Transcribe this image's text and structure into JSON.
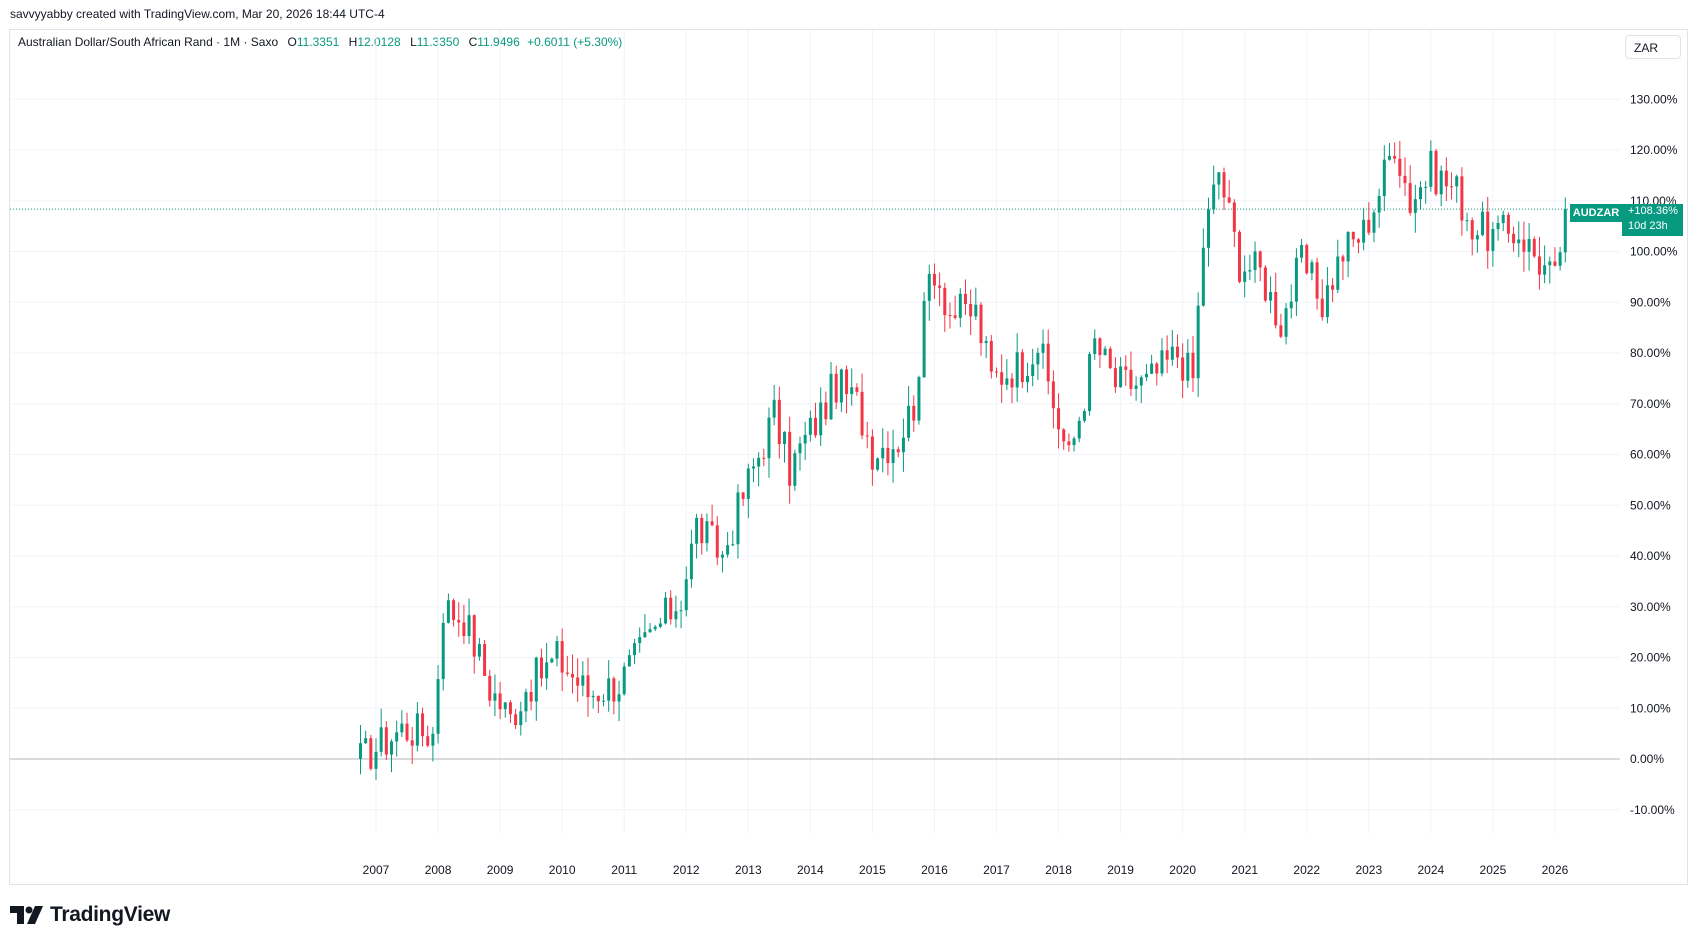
{
  "header": {
    "credit": "savvyyabby created with TradingView.com, Mar 20, 2026 18:44 UTC-4"
  },
  "legend": {
    "title": "Australian Dollar/South African Rand · 1M · Saxo",
    "open_label": "O",
    "open": "11.3351",
    "high_label": "H",
    "high": "12.0128",
    "low_label": "L",
    "low": "11.3350",
    "close_label": "C",
    "close": "11.9496",
    "change": "+0.6011 (+5.30%)"
  },
  "currency_button": "ZAR",
  "last_price": {
    "symbol": "AUDZAR",
    "value": "+108.36%",
    "countdown": "10d 23h"
  },
  "brand": "TradingView",
  "colors": {
    "up": "#089981",
    "down": "#f23645",
    "grid": "#f0f3fa",
    "zero_line": "#b2b5be"
  },
  "chart_data": {
    "type": "candlestick",
    "title": "Australian Dollar/South African Rand",
    "interval": "1M",
    "source": "Saxo",
    "y_unit": "percent change",
    "ylim": [
      -20,
      140
    ],
    "y_ticks": [
      "130.00%",
      "120.00%",
      "110.00%",
      "100.00%",
      "90.00%",
      "80.00%",
      "70.00%",
      "60.00%",
      "50.00%",
      "40.00%",
      "30.00%",
      "20.00%",
      "10.00%",
      "0.00%",
      "-10.00%"
    ],
    "y_tick_values": [
      130,
      120,
      110,
      100,
      90,
      80,
      70,
      60,
      50,
      40,
      30,
      20,
      10,
      0,
      -10
    ],
    "x_ticks": [
      "2007",
      "2008",
      "2009",
      "2010",
      "2011",
      "2012",
      "2013",
      "2014",
      "2015",
      "2016",
      "2017",
      "2018",
      "2019",
      "2020",
      "2021",
      "2022",
      "2023",
      "2024",
      "2025",
      "2026"
    ],
    "x_start": "2006-10",
    "x_end": "2026-03",
    "baseline": 0,
    "last_value": 108.36,
    "anchor_points": [
      {
        "date": "2006-10",
        "value": 0
      },
      {
        "date": "2007-06",
        "value": 6
      },
      {
        "date": "2007-12",
        "value": 5
      },
      {
        "date": "2008-02",
        "value": 30
      },
      {
        "date": "2008-06",
        "value": 28
      },
      {
        "date": "2008-09",
        "value": 20
      },
      {
        "date": "2008-11",
        "value": 14
      },
      {
        "date": "2009-03",
        "value": 8
      },
      {
        "date": "2009-06",
        "value": 14
      },
      {
        "date": "2009-12",
        "value": 20
      },
      {
        "date": "2010-06",
        "value": 13
      },
      {
        "date": "2010-12",
        "value": 15
      },
      {
        "date": "2011-06",
        "value": 24
      },
      {
        "date": "2011-12",
        "value": 32
      },
      {
        "date": "2012-03",
        "value": 46
      },
      {
        "date": "2012-08",
        "value": 40
      },
      {
        "date": "2012-12",
        "value": 52
      },
      {
        "date": "2013-03",
        "value": 60
      },
      {
        "date": "2013-06",
        "value": 68
      },
      {
        "date": "2013-09",
        "value": 57
      },
      {
        "date": "2013-12",
        "value": 63
      },
      {
        "date": "2014-03",
        "value": 68
      },
      {
        "date": "2014-06",
        "value": 74
      },
      {
        "date": "2014-10",
        "value": 70
      },
      {
        "date": "2015-01",
        "value": 61
      },
      {
        "date": "2015-06",
        "value": 63
      },
      {
        "date": "2015-09",
        "value": 70
      },
      {
        "date": "2015-12",
        "value": 95
      },
      {
        "date": "2016-01",
        "value": 97
      },
      {
        "date": "2016-04",
        "value": 88
      },
      {
        "date": "2016-09",
        "value": 88
      },
      {
        "date": "2016-12",
        "value": 75
      },
      {
        "date": "2017-06",
        "value": 78
      },
      {
        "date": "2017-09",
        "value": 82
      },
      {
        "date": "2017-12",
        "value": 70
      },
      {
        "date": "2018-03",
        "value": 59
      },
      {
        "date": "2018-06",
        "value": 72
      },
      {
        "date": "2018-08",
        "value": 82
      },
      {
        "date": "2018-12",
        "value": 74
      },
      {
        "date": "2019-06",
        "value": 74
      },
      {
        "date": "2019-12",
        "value": 80
      },
      {
        "date": "2020-03",
        "value": 75
      },
      {
        "date": "2020-05",
        "value": 102
      },
      {
        "date": "2020-08",
        "value": 116
      },
      {
        "date": "2020-12",
        "value": 98
      },
      {
        "date": "2021-04",
        "value": 96
      },
      {
        "date": "2021-08",
        "value": 86
      },
      {
        "date": "2021-12",
        "value": 98
      },
      {
        "date": "2022-04",
        "value": 90
      },
      {
        "date": "2022-08",
        "value": 100
      },
      {
        "date": "2022-12",
        "value": 104
      },
      {
        "date": "2023-03",
        "value": 112
      },
      {
        "date": "2023-06",
        "value": 122
      },
      {
        "date": "2023-09",
        "value": 110
      },
      {
        "date": "2024-01",
        "value": 116
      },
      {
        "date": "2024-06",
        "value": 112
      },
      {
        "date": "2024-09",
        "value": 105
      },
      {
        "date": "2025-01",
        "value": 103
      },
      {
        "date": "2025-06",
        "value": 104
      },
      {
        "date": "2025-10",
        "value": 98
      },
      {
        "date": "2026-01",
        "value": 94
      },
      {
        "date": "2026-03",
        "value": 108.36
      }
    ]
  }
}
